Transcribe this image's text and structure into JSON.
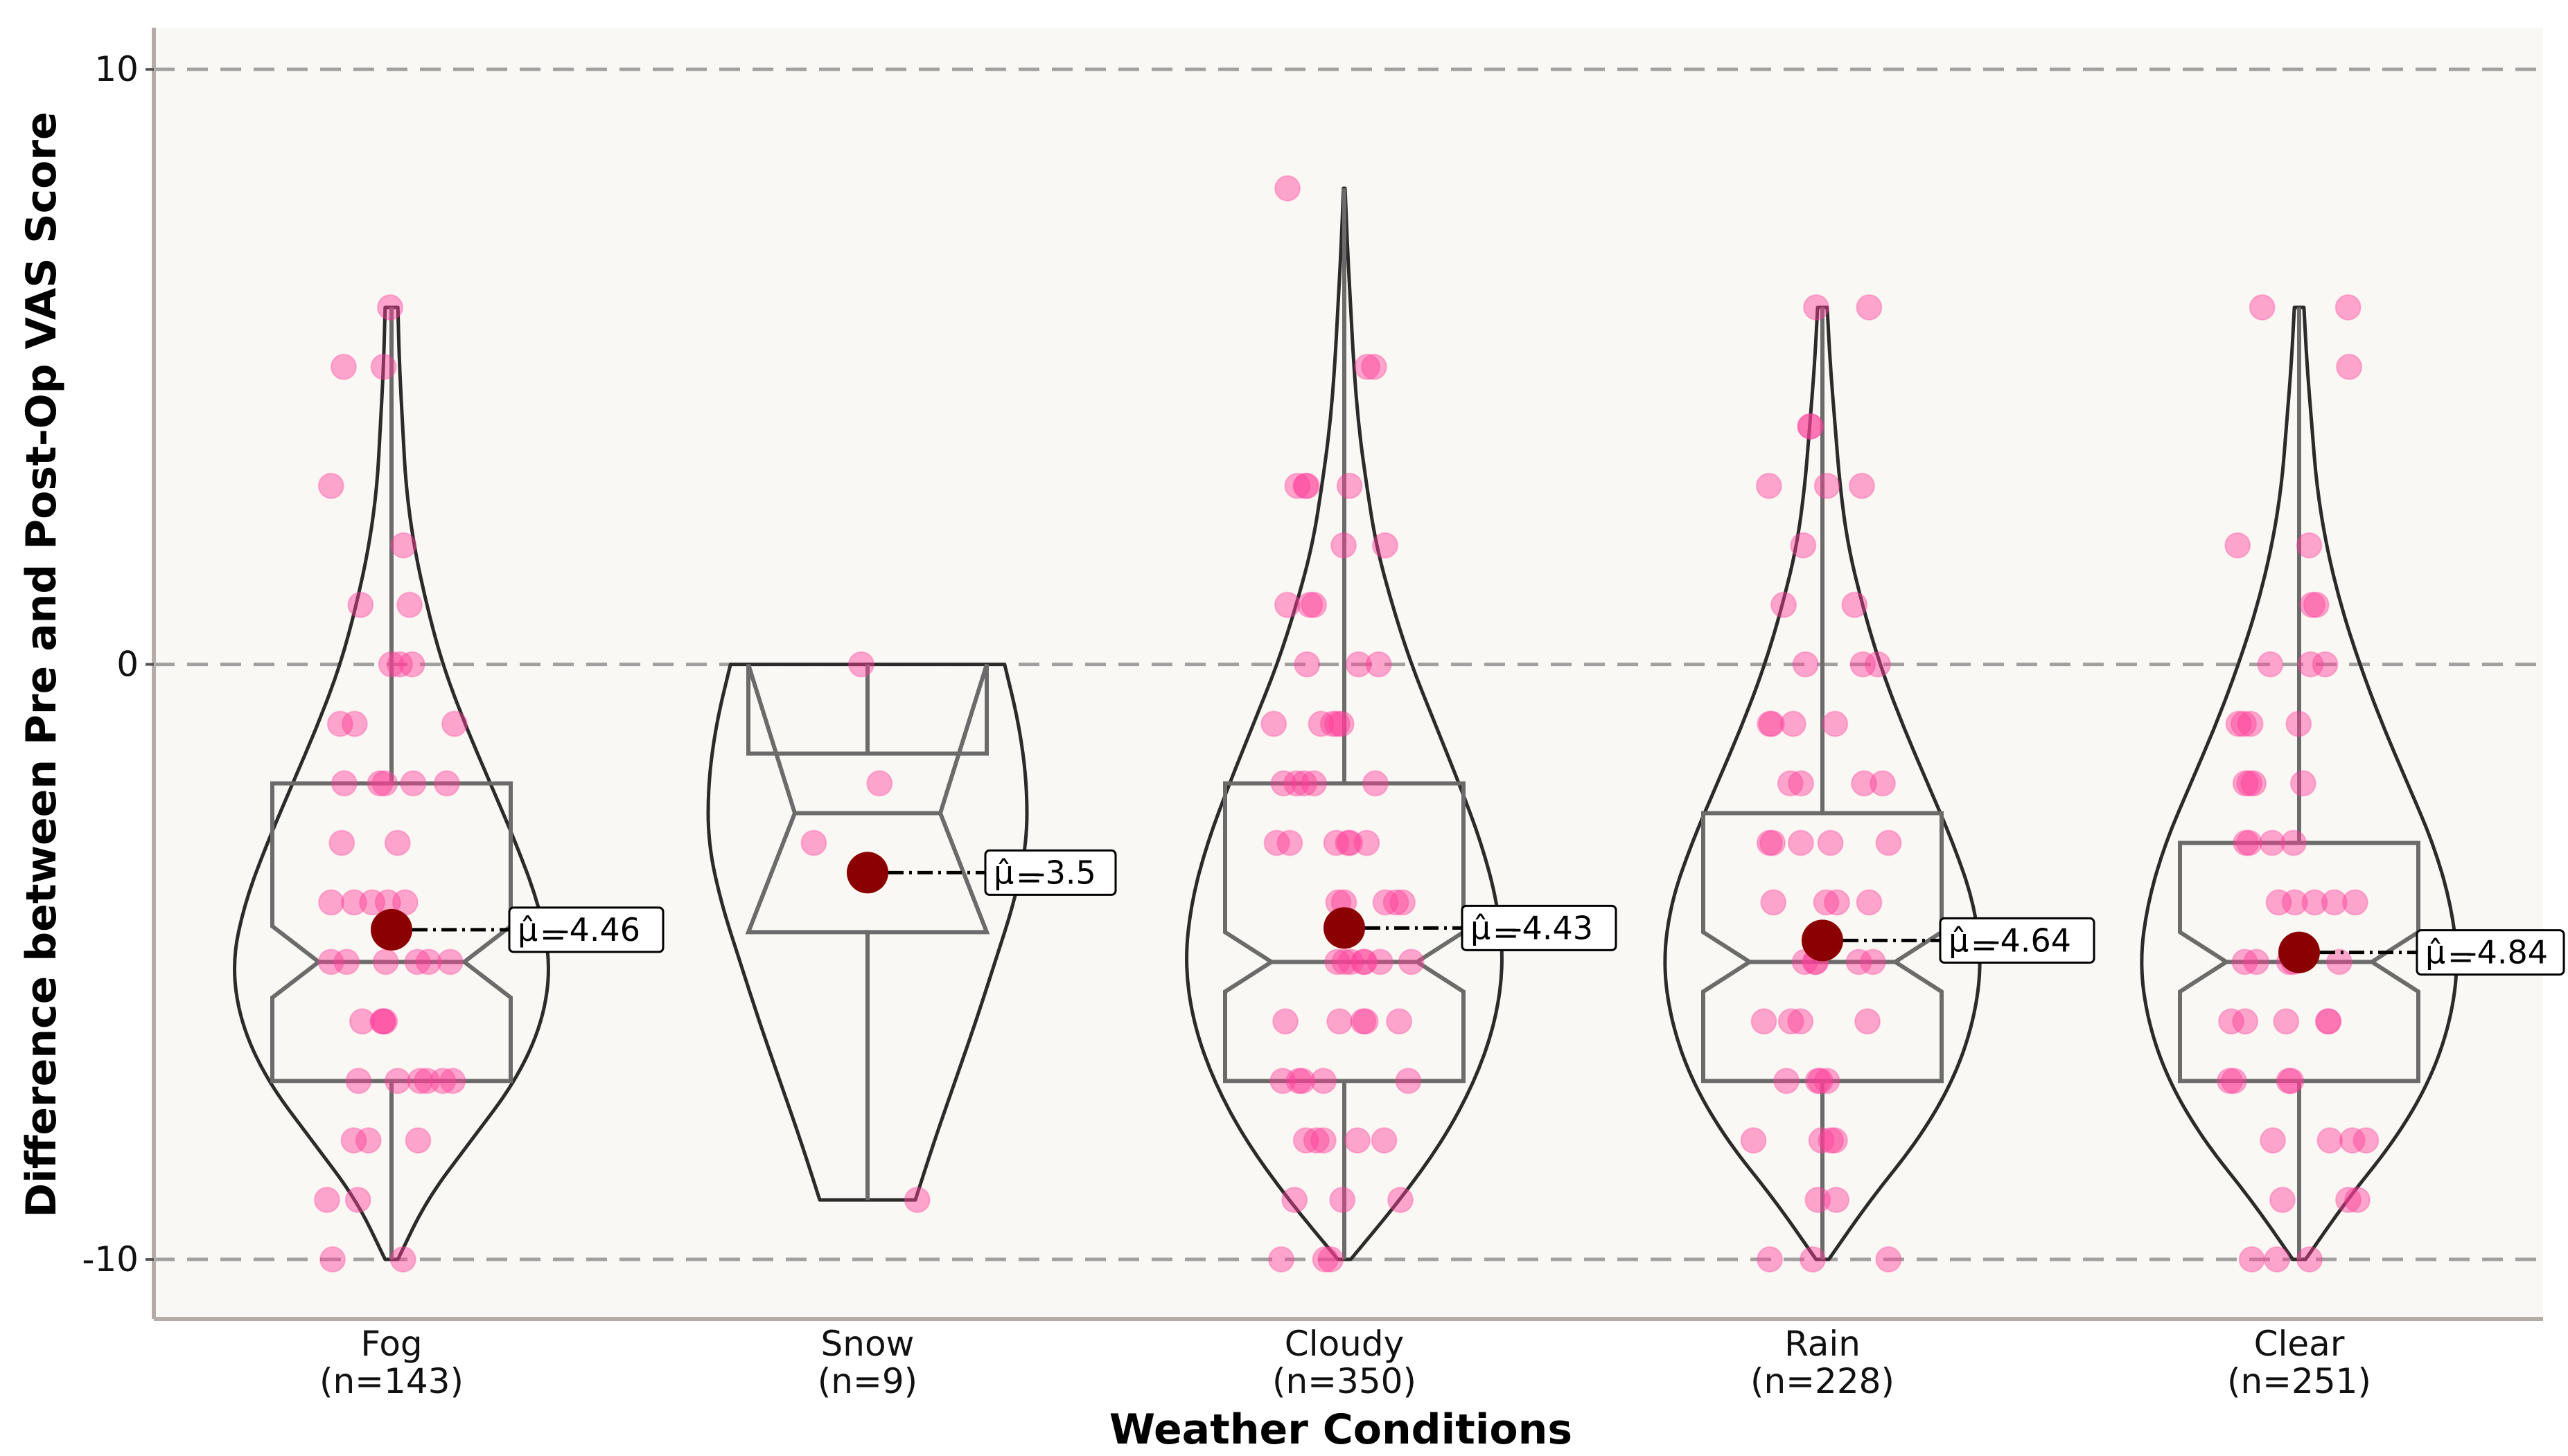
{
  "chart_data": {
    "type": "violin-box-strip",
    "xlabel": "Weather Conditions",
    "ylabel": "Difference between Pre and Post-Op VAS Score",
    "ylim": [
      -11,
      10.7
    ],
    "yticks": [
      -10,
      0,
      10
    ],
    "ytick_labels": [
      "-10",
      "0",
      "10"
    ],
    "hlines": [
      -10,
      0,
      10
    ],
    "grid": "dashed horizontal at -10, 0, 10",
    "colors": {
      "background": "#faf8f4",
      "points": "#ff3d9a",
      "mean_marker": "#8b0000",
      "box": "#6b6b6b",
      "violin": "#2b2b2b",
      "grid": "#a0a0a0"
    },
    "categories": [
      {
        "name": "Fog",
        "n_label": "(n=143)",
        "mean_label": "-4.46",
        "mean": -4.46,
        "q1": -7,
        "median": -5,
        "q3": -2,
        "notch": [
          -5.6,
          -4.4
        ],
        "whisker": [
          -10,
          6
        ],
        "violin": [
          [
            -10,
            0.04
          ],
          [
            -9,
            0.22
          ],
          [
            -8,
            0.5
          ],
          [
            -7,
            0.78
          ],
          [
            -6,
            0.95
          ],
          [
            -5,
            1.0
          ],
          [
            -4,
            0.92
          ],
          [
            -3,
            0.78
          ],
          [
            -2,
            0.62
          ],
          [
            -1,
            0.46
          ],
          [
            0,
            0.32
          ],
          [
            1,
            0.22
          ],
          [
            2,
            0.14
          ],
          [
            3,
            0.09
          ],
          [
            4,
            0.07
          ],
          [
            5,
            0.05
          ],
          [
            6,
            0.04
          ]
        ],
        "points": [
          6,
          5,
          5,
          3,
          2,
          1,
          1,
          0,
          0,
          0,
          -1,
          -1,
          -1,
          -2,
          -2,
          -2,
          -2,
          -2,
          -3,
          -3,
          -4,
          -4,
          -4,
          -4,
          -4,
          -5,
          -5,
          -5,
          -5,
          -5,
          -5,
          -6,
          -6,
          -6,
          -6,
          -7,
          -7,
          -7,
          -7,
          -7,
          -7,
          -8,
          -8,
          -8,
          -9,
          -9,
          -10,
          -10
        ]
      },
      {
        "name": "Snow",
        "n_label": "(n=9)",
        "mean_label": "-3.5",
        "mean": -3.5,
        "q1": -4.5,
        "median": -2.5,
        "q3": -1.5,
        "notch": [
          -4.5,
          0
        ],
        "whisker": [
          -9,
          0
        ],
        "violin": [
          [
            -9,
            0.3
          ],
          [
            -8,
            0.42
          ],
          [
            -7,
            0.55
          ],
          [
            -6,
            0.68
          ],
          [
            -5,
            0.8
          ],
          [
            -4,
            0.92
          ],
          [
            -3,
            1.0
          ],
          [
            -2,
            1.0
          ],
          [
            -1,
            0.95
          ],
          [
            0,
            0.86
          ]
        ],
        "points": [
          0,
          -2,
          -3,
          -9
        ]
      },
      {
        "name": "Cloudy",
        "n_label": "(n=350)",
        "mean_label": "-4.43",
        "mean": -4.43,
        "q1": -7,
        "median": -5,
        "q3": -2,
        "notch": [
          -5.5,
          -4.5
        ],
        "whisker": [
          -10,
          8
        ],
        "violin": [
          [
            -10,
            0.04
          ],
          [
            -9,
            0.35
          ],
          [
            -8,
            0.62
          ],
          [
            -7,
            0.82
          ],
          [
            -6,
            0.95
          ],
          [
            -5,
            1.0
          ],
          [
            -4,
            0.96
          ],
          [
            -3,
            0.86
          ],
          [
            -2,
            0.72
          ],
          [
            -1,
            0.57
          ],
          [
            0,
            0.42
          ],
          [
            1,
            0.3
          ],
          [
            2,
            0.2
          ],
          [
            3,
            0.14
          ],
          [
            4,
            0.09
          ],
          [
            5,
            0.06
          ],
          [
            6,
            0.04
          ],
          [
            7,
            0.02
          ],
          [
            8,
            0.005
          ]
        ],
        "points": [
          8,
          5,
          5,
          3,
          3,
          3,
          3,
          2,
          2,
          1,
          1,
          1,
          0,
          0,
          0,
          -1,
          -1,
          -1,
          -1,
          -1,
          -2,
          -2,
          -2,
          -2,
          -2,
          -3,
          -3,
          -3,
          -3,
          -3,
          -3,
          -4,
          -4,
          -4,
          -4,
          -4,
          -5,
          -5,
          -5,
          -5,
          -5,
          -5,
          -5,
          -6,
          -6,
          -6,
          -6,
          -6,
          -7,
          -7,
          -7,
          -7,
          -7,
          -8,
          -8,
          -8,
          -8,
          -8,
          -9,
          -9,
          -9,
          -10,
          -10,
          -10
        ]
      },
      {
        "name": "Rain",
        "n_label": "(n=228)",
        "mean_label": "-4.64",
        "mean": -4.64,
        "q1": -7,
        "median": -5,
        "q3": -2.5,
        "notch": [
          -5.5,
          -4.5
        ],
        "whisker": [
          -10,
          6
        ],
        "violin": [
          [
            -10,
            0.04
          ],
          [
            -9,
            0.3
          ],
          [
            -8,
            0.6
          ],
          [
            -7,
            0.82
          ],
          [
            -6,
            0.95
          ],
          [
            -5,
            1.0
          ],
          [
            -4,
            0.95
          ],
          [
            -3,
            0.82
          ],
          [
            -2,
            0.66
          ],
          [
            -1,
            0.5
          ],
          [
            0,
            0.36
          ],
          [
            1,
            0.25
          ],
          [
            2,
            0.16
          ],
          [
            3,
            0.11
          ],
          [
            4,
            0.08
          ],
          [
            5,
            0.05
          ],
          [
            6,
            0.03
          ]
        ],
        "points": [
          6,
          6,
          4,
          4,
          3,
          3,
          3,
          2,
          1,
          1,
          0,
          0,
          0,
          -1,
          -1,
          -1,
          -1,
          -2,
          -2,
          -2,
          -2,
          -3,
          -3,
          -3,
          -3,
          -3,
          -4,
          -4,
          -4,
          -4,
          -5,
          -5,
          -5,
          -5,
          -5,
          -6,
          -6,
          -6,
          -6,
          -7,
          -7,
          -7,
          -7,
          -8,
          -8,
          -8,
          -8,
          -9,
          -9,
          -10,
          -10,
          -10
        ]
      },
      {
        "name": "Clear",
        "n_label": "(n=251)",
        "mean_label": "-4.84",
        "mean": -4.84,
        "q1": -7,
        "median": -5,
        "q3": -3,
        "notch": [
          -5.5,
          -4.5
        ],
        "whisker": [
          -10,
          6
        ],
        "violin": [
          [
            -10,
            0.04
          ],
          [
            -9,
            0.3
          ],
          [
            -8,
            0.6
          ],
          [
            -7,
            0.82
          ],
          [
            -6,
            0.95
          ],
          [
            -5,
            1.0
          ],
          [
            -4,
            0.95
          ],
          [
            -3,
            0.84
          ],
          [
            -2,
            0.68
          ],
          [
            -1,
            0.52
          ],
          [
            0,
            0.38
          ],
          [
            1,
            0.26
          ],
          [
            2,
            0.17
          ],
          [
            3,
            0.11
          ],
          [
            4,
            0.08
          ],
          [
            5,
            0.05
          ],
          [
            6,
            0.03
          ]
        ],
        "points": [
          6,
          6,
          5,
          2,
          2,
          1,
          1,
          0,
          0,
          0,
          -1,
          -1,
          -1,
          -1,
          -2,
          -2,
          -2,
          -2,
          -3,
          -3,
          -3,
          -3,
          -4,
          -4,
          -4,
          -4,
          -4,
          -5,
          -5,
          -5,
          -5,
          -5,
          -6,
          -6,
          -6,
          -6,
          -6,
          -7,
          -7,
          -7,
          -7,
          -8,
          -8,
          -8,
          -8,
          -9,
          -9,
          -9,
          -10,
          -10,
          -10
        ]
      }
    ]
  }
}
